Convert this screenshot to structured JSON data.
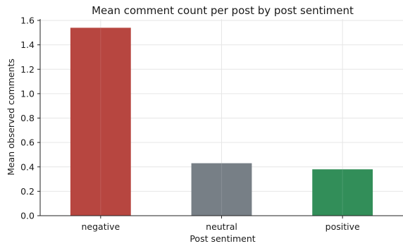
{
  "chart_data": {
    "type": "bar",
    "title": "Mean comment count per post by post sentiment",
    "xlabel": "Post sentiment",
    "ylabel": "Mean observed comments",
    "categories": [
      "negative",
      "neutral",
      "positive"
    ],
    "values": [
      1.54,
      0.43,
      0.38
    ],
    "colors": [
      "#b5403a",
      "#737b82",
      "#2b8a54"
    ],
    "ylim": [
      0,
      1.6
    ],
    "yticks": [
      "0.0",
      "0.2",
      "0.4",
      "0.6",
      "0.8",
      "1.0",
      "1.2",
      "1.4",
      "1.6"
    ],
    "grid": true,
    "legend": false
  }
}
